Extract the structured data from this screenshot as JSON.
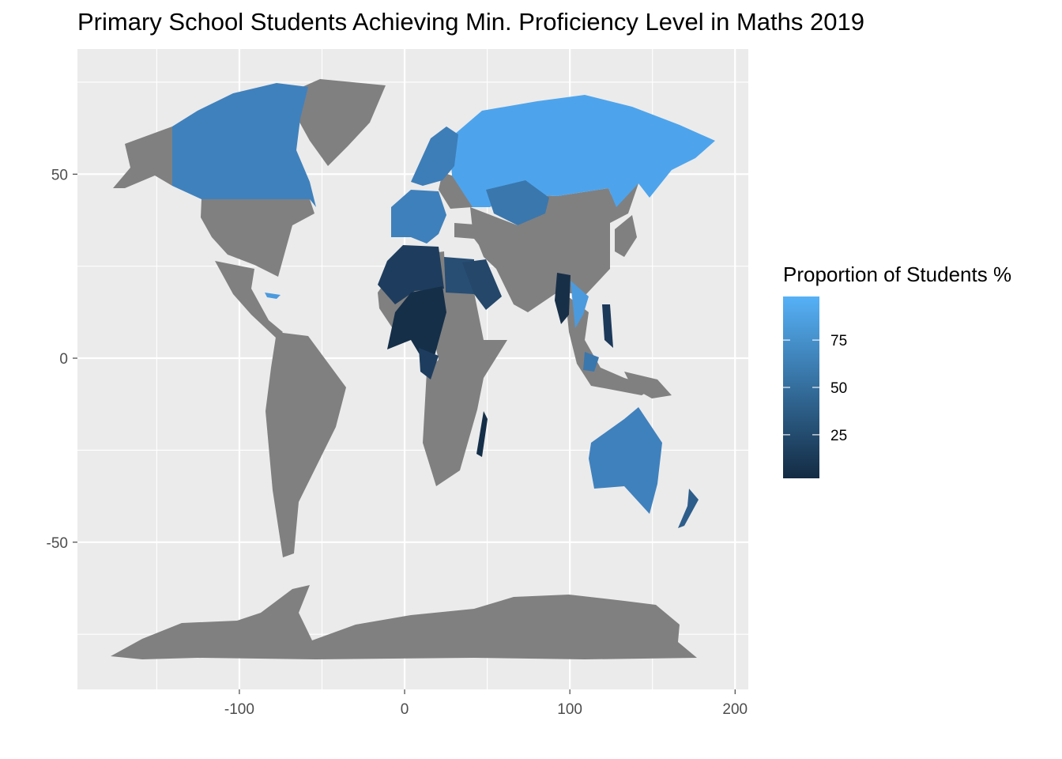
{
  "title": "Primary School Students Achieving Min. Proficiency Level in Maths 2019",
  "legend": {
    "title": "Proportion of Students %",
    "breaks": [
      25,
      50,
      75
    ],
    "range": [
      2,
      98
    ],
    "color_low": "#132B43",
    "color_high": "#56B1F7"
  },
  "axes": {
    "x_ticks": [
      -100,
      0,
      100,
      200
    ],
    "y_ticks": [
      50,
      0,
      -50
    ],
    "x_range": [
      -198,
      208
    ],
    "y_range": [
      -90,
      84
    ],
    "grid": true
  },
  "colors": {
    "panel": "#EBEBEB",
    "grid": "#FFFFFF",
    "land_no_data": "#808080"
  }
}
